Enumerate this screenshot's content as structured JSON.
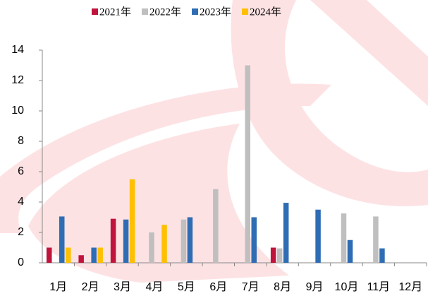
{
  "chart_data": {
    "type": "bar",
    "categories": [
      "1月",
      "2月",
      "3月",
      "4月",
      "5月",
      "6月",
      "7月",
      "8月",
      "9月",
      "10月",
      "11月",
      "12月"
    ],
    "series": [
      {
        "name": "2021年",
        "color": "#c0143c",
        "values": [
          1.0,
          0.5,
          2.9,
          null,
          null,
          null,
          null,
          1.0,
          null,
          null,
          null,
          null
        ]
      },
      {
        "name": "2022年",
        "color": "#bfbfbf",
        "values": [
          null,
          null,
          null,
          2.0,
          2.85,
          4.85,
          13.0,
          0.95,
          null,
          3.25,
          3.05,
          null
        ]
      },
      {
        "name": "2023年",
        "color": "#2e6db4",
        "values": [
          3.05,
          1.0,
          2.85,
          null,
          3.0,
          null,
          3.0,
          3.95,
          3.5,
          1.5,
          0.95,
          null
        ]
      },
      {
        "name": "2024年",
        "color": "#ffc000",
        "values": [
          1.0,
          1.0,
          5.5,
          2.5,
          null,
          null,
          null,
          null,
          null,
          null,
          null,
          null
        ]
      }
    ],
    "ylim": [
      0,
      14
    ],
    "yticks": [
      0,
      2,
      4,
      6,
      8,
      10,
      12,
      14
    ]
  }
}
